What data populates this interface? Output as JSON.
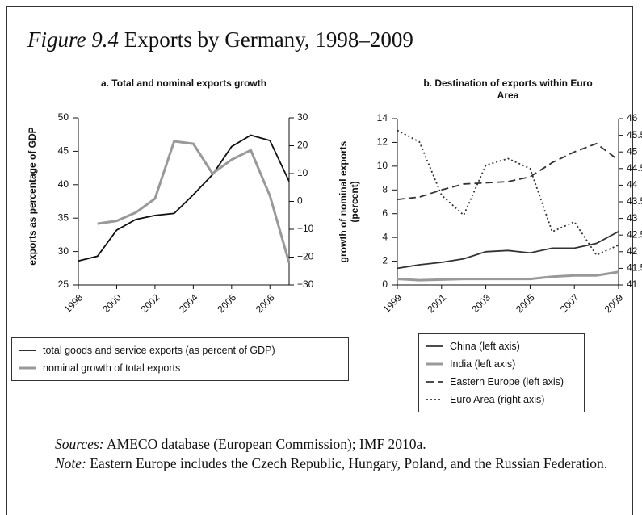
{
  "figure": {
    "title_label": "Figure 9.4",
    "title": "Exports by Germany, 1998–2009",
    "sources_label": "Sources:",
    "sources": "AMECO database (European Commission); IMF 2010a.",
    "note_label": "Note:",
    "note": "Eastern Europe includes the Czech Republic, Hungary, Poland, and the Russian Federation."
  },
  "chart_data": [
    {
      "type": "line",
      "title": "a. Total and nominal exports growth",
      "y_label": "exports as percentage of GDP",
      "x": [
        1998,
        1999,
        2000,
        2001,
        2002,
        2003,
        2004,
        2005,
        2006,
        2007,
        2008,
        2009
      ],
      "xlim": [
        1998,
        2009
      ],
      "xticks": [
        1998,
        2000,
        2002,
        2004,
        2006,
        2008
      ],
      "ylim": [
        25,
        50
      ],
      "yticks": [
        25,
        30,
        35,
        40,
        45,
        50
      ],
      "y2lim": [
        -30,
        30
      ],
      "y2ticks": [
        {
          "value": -30,
          "label": "−30"
        },
        {
          "value": -20,
          "label": "−20"
        },
        {
          "value": -10,
          "label": "−10"
        },
        0,
        10,
        20,
        30
      ],
      "series": [
        {
          "name": "total goods and service exports (as percent of GDP)",
          "color": "#111111",
          "style": "solid",
          "values": [
            28.6,
            29.3,
            33.2,
            34.8,
            35.4,
            35.7,
            38.5,
            41.5,
            45.7,
            47.4,
            46.6,
            40.5
          ]
        },
        {
          "name": "nominal growth of total exports",
          "color": "#999999",
          "style": "solid",
          "axis": "y2",
          "values": [
            null,
            -8,
            -7,
            -4,
            1,
            21.6,
            20.7,
            10,
            15,
            18.4,
            2,
            -22
          ]
        }
      ]
    },
    {
      "type": "line",
      "title": "b. Destination of exports within Euro Area",
      "y_label": "growth of nominal exports (percent)",
      "x": [
        1999,
        2000,
        2001,
        2002,
        2003,
        2004,
        2005,
        2006,
        2007,
        2008,
        2009
      ],
      "xlim": [
        1999,
        2009
      ],
      "xticks": [
        1999,
        2001,
        2003,
        2005,
        2007,
        2009
      ],
      "ylim": [
        0,
        14
      ],
      "yticks": [
        0,
        2,
        4,
        6,
        8,
        10,
        12,
        14
      ],
      "y2lim": [
        41,
        46
      ],
      "y2ticks": [
        41,
        41.5,
        42,
        42.5,
        43,
        43.5,
        44,
        44.5,
        45,
        45.5,
        46
      ],
      "series": [
        {
          "name": "China (left axis)",
          "color": "#333333",
          "style": "solid",
          "values": [
            1.4,
            1.7,
            1.9,
            2.2,
            2.8,
            2.9,
            2.7,
            3.1,
            3.1,
            3.5,
            4.5
          ]
        },
        {
          "name": "India (left axis)",
          "color": "#999999",
          "style": "solid",
          "values": [
            0.5,
            0.4,
            0.45,
            0.5,
            0.5,
            0.5,
            0.5,
            0.7,
            0.8,
            0.8,
            1.1
          ]
        },
        {
          "name": "Eastern Europe (left axis)",
          "color": "#333333",
          "style": "dashed",
          "values": [
            7.2,
            7.4,
            8.0,
            8.5,
            8.6,
            8.7,
            9.1,
            10.3,
            11.2,
            11.9,
            10.5
          ]
        },
        {
          "name": "Euro Area (right axis)",
          "color": "#333333",
          "style": "dotted",
          "axis": "y2",
          "values": [
            45.65,
            45.3,
            43.7,
            43.1,
            44.6,
            44.8,
            44.5,
            42.6,
            42.9,
            41.9,
            42.2
          ]
        }
      ]
    }
  ]
}
